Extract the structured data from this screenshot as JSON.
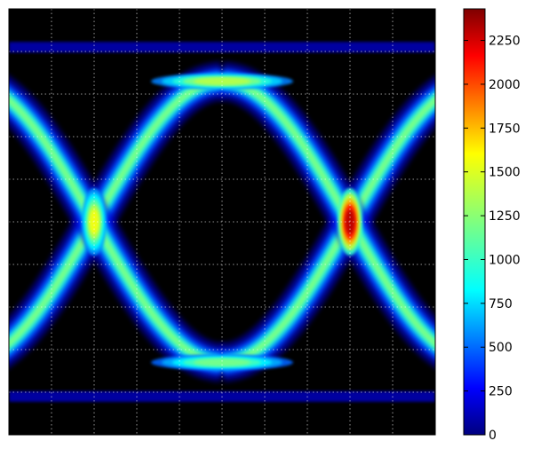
{
  "chart_data": {
    "type": "heatmap",
    "description_kind": "eye-diagram density contour",
    "title": "",
    "xlabel": "",
    "ylabel": "",
    "xaxis_ticks_shown": false,
    "yaxis_ticks_shown": false,
    "grid": true,
    "grid_style": "dotted-white",
    "background": "#000000",
    "colormap": "jet",
    "colorbar": {
      "min": 0,
      "max": 2430,
      "ticks": [
        0,
        250,
        500,
        750,
        1000,
        1250,
        1500,
        1750,
        2000,
        2250
      ],
      "tick_labels": [
        "0",
        "250",
        "500",
        "750",
        "1000",
        "1250",
        "1500",
        "1750",
        "2000",
        "2250"
      ],
      "placement": "right"
    },
    "x": {
      "range": [
        0,
        10
      ],
      "grid_lines": [
        1,
        2,
        3,
        4,
        5,
        6,
        7,
        8,
        9
      ]
    },
    "y": {
      "range": [
        0,
        10
      ],
      "grid_lines": [
        1,
        2,
        3,
        4,
        5,
        6,
        7,
        8,
        9
      ]
    },
    "traces": {
      "upper_level": 8.3,
      "lower_level": 1.7,
      "crossings_x": [
        2.0,
        8.0
      ],
      "crossing_y": 5.0,
      "edge_rail_top": 9.1,
      "edge_rail_bottom": 0.9
    },
    "peaks": [
      {
        "name": "left-crossing",
        "x": 2.0,
        "y": 5.0,
        "value": 1500
      },
      {
        "name": "right-crossing",
        "x": 8.0,
        "y": 5.0,
        "value": 2300
      },
      {
        "name": "top-rail-center",
        "x": 5.0,
        "y": 8.3,
        "value": 1350
      },
      {
        "name": "bottom-rail-center",
        "x": 5.0,
        "y": 1.7,
        "value": 1200
      }
    ]
  }
}
